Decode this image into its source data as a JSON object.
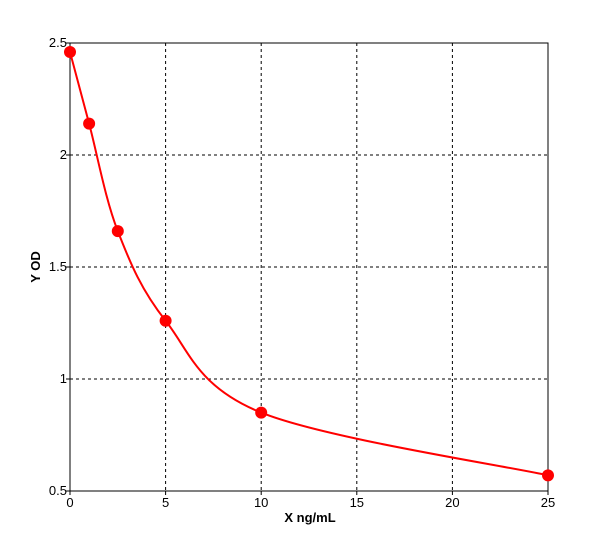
{
  "chart_data": {
    "type": "line",
    "smooth": true,
    "markers": true,
    "grid": true,
    "x_label": "X ng/mL",
    "y_label": "Y OD",
    "x": [
      0,
      1,
      2.5,
      5,
      10,
      25
    ],
    "series": [
      {
        "color": "#ff0000",
        "values": [
          2.46,
          2.14,
          1.66,
          1.26,
          0.85,
          0.57
        ]
      }
    ],
    "xlim": [
      0,
      25
    ],
    "xticks": [
      0,
      5,
      10,
      15,
      20,
      25
    ],
    "ylim": [
      0.5,
      2.5
    ],
    "yticks": [
      0.5,
      1,
      1.5,
      2,
      2.5
    ]
  }
}
